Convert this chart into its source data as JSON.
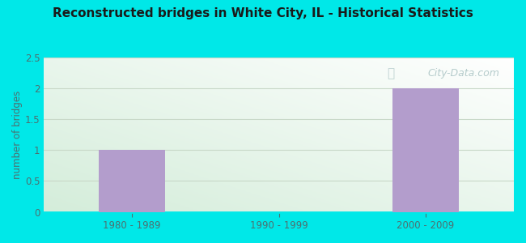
{
  "title": "Reconstructed bridges in White City, IL - Historical Statistics",
  "categories": [
    "1980 - 1989",
    "1990 - 1999",
    "2000 - 2009"
  ],
  "values": [
    1,
    0,
    2
  ],
  "bar_color": "#b39dcc",
  "ylabel": "number of bridges",
  "ylabel_color": "#4d7070",
  "ylim": [
    0,
    2.5
  ],
  "yticks": [
    0,
    0.5,
    1,
    1.5,
    2,
    2.5
  ],
  "outer_bg_color": "#00e8e8",
  "plot_bg_color_topleft": "#d4edda",
  "plot_bg_color_bottomright": "#f5fff5",
  "grid_color": "#c8d8c8",
  "title_color": "#1a1a1a",
  "tick_label_color": "#4d7070",
  "watermark_text": "City-Data.com",
  "watermark_color": "#aac4c4",
  "figsize": [
    6.5,
    3.0
  ],
  "dpi": 100
}
